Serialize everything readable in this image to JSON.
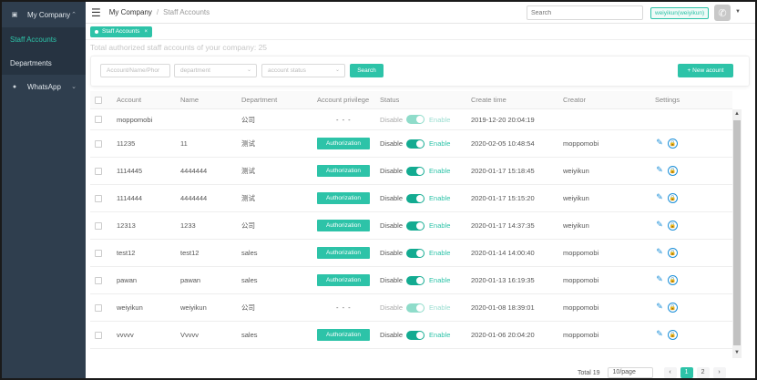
{
  "sidebar": {
    "title": "My Company",
    "items": [
      {
        "label": "Staff Accounts",
        "active": true
      },
      {
        "label": "Departments",
        "active": false
      },
      {
        "label": "WhatsApp",
        "active": false
      }
    ]
  },
  "topbar": {
    "breadcrumb_root": "My Company",
    "breadcrumb_current": "Staff Accounts",
    "search_placeholder": "Search",
    "user": "weiyikun(weiyikun)"
  },
  "tag": {
    "label": "Staff Accounts",
    "close": "×"
  },
  "summary": "Total authorized staff accounts of your company: 25",
  "filters": {
    "name_placeholder": "Account/Name/Phor",
    "department_placeholder": "department",
    "status_placeholder": "account status",
    "search_label": "Search",
    "new_account_label": "+ New acount"
  },
  "columns": [
    "Account",
    "Name",
    "Department",
    "Account privilege",
    "Status",
    "Create time",
    "Creator",
    "Settings"
  ],
  "status_labels": {
    "off": "Disable",
    "on": "Enable"
  },
  "authorization_label": "Authorization",
  "dashes": "- - -",
  "rows": [
    {
      "account": "moppomobi",
      "name": "",
      "department": "公司",
      "privilege": "none",
      "status": "disabled",
      "create_time": "2019-12-20 20:04:19",
      "creator": "",
      "settings": false
    },
    {
      "account": "11235",
      "name": "11",
      "department": "测试",
      "privilege": "auth",
      "status": "enabled",
      "create_time": "2020-02-05 10:48:54",
      "creator": "moppomobi",
      "settings": true
    },
    {
      "account": "1114445",
      "name": "4444444",
      "department": "测试",
      "privilege": "auth",
      "status": "enabled",
      "create_time": "2020-01-17 15:18:45",
      "creator": "weiyikun",
      "settings": true
    },
    {
      "account": "1114444",
      "name": "4444444",
      "department": "测试",
      "privilege": "auth",
      "status": "enabled",
      "create_time": "2020-01-17 15:15:20",
      "creator": "weiyikun",
      "settings": true
    },
    {
      "account": "12313",
      "name": "1233",
      "department": "公司",
      "privilege": "auth",
      "status": "enabled",
      "create_time": "2020-01-17 14:37:35",
      "creator": "weiyikun",
      "settings": true
    },
    {
      "account": "test12",
      "name": "test12",
      "department": "sales",
      "privilege": "auth",
      "status": "enabled",
      "create_time": "2020-01-14 14:00:40",
      "creator": "moppomobi",
      "settings": true
    },
    {
      "account": "pawan",
      "name": "pawan",
      "department": "sales",
      "privilege": "auth",
      "status": "enabled",
      "create_time": "2020-01-13 16:19:35",
      "creator": "moppomobi",
      "settings": true
    },
    {
      "account": "weiyikun",
      "name": "weiyikun",
      "department": "公司",
      "privilege": "none",
      "status": "disabled",
      "create_time": "2020-01-08 18:39:01",
      "creator": "moppomobi",
      "settings": true
    },
    {
      "account": "vvvvv",
      "name": "Vvvvv",
      "department": "sales",
      "privilege": "auth",
      "status": "enabled",
      "create_time": "2020-01-06 20:04:20",
      "creator": "moppomobi",
      "settings": true
    }
  ],
  "pagination": {
    "total": "Total 19",
    "page_size": "10/page",
    "prev": "‹",
    "pages": [
      "1",
      "2"
    ],
    "next": "›"
  },
  "colors": {
    "accent": "#2dc3a8",
    "sidebar": "#2f3e4e",
    "link": "#1b8fd8"
  }
}
